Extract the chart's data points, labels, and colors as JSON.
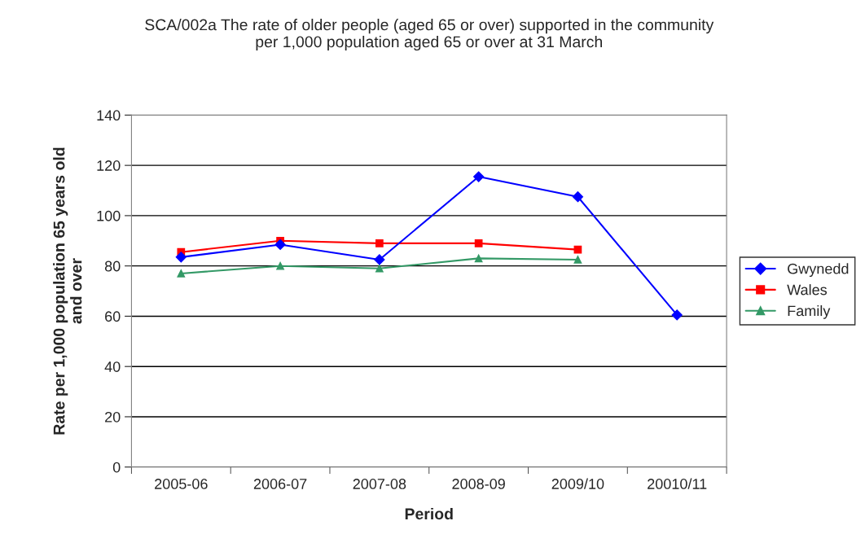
{
  "chart_data": {
    "type": "line",
    "title": "SCA/002a The rate of older people (aged 65 or over) supported in the community\nper 1,000 population aged 65 or over at 31 March",
    "xlabel": "Period",
    "ylabel": "Rate per 1,000 population 65 years old\nand over",
    "categories": [
      "2005-06",
      "2006-07",
      "2007-08",
      "2008-09",
      "2009/10",
      "20010/11"
    ],
    "series": [
      {
        "name": "Gwynedd",
        "color": "#0000ff",
        "marker": "diamond",
        "values": [
          83.5,
          88.5,
          82.5,
          115.5,
          107.5,
          60.5
        ]
      },
      {
        "name": "Wales",
        "color": "#ff0000",
        "marker": "square",
        "values": [
          85.5,
          90,
          89,
          89,
          86.5,
          null
        ]
      },
      {
        "name": "Family",
        "color": "#339966",
        "marker": "triangle",
        "values": [
          77,
          80,
          79,
          83,
          82.5,
          null
        ]
      }
    ],
    "ylim": [
      0,
      140
    ],
    "yticks": [
      0,
      20,
      40,
      60,
      80,
      100,
      120,
      140
    ],
    "grid": "y",
    "legend": "right",
    "line_style": "solid"
  }
}
